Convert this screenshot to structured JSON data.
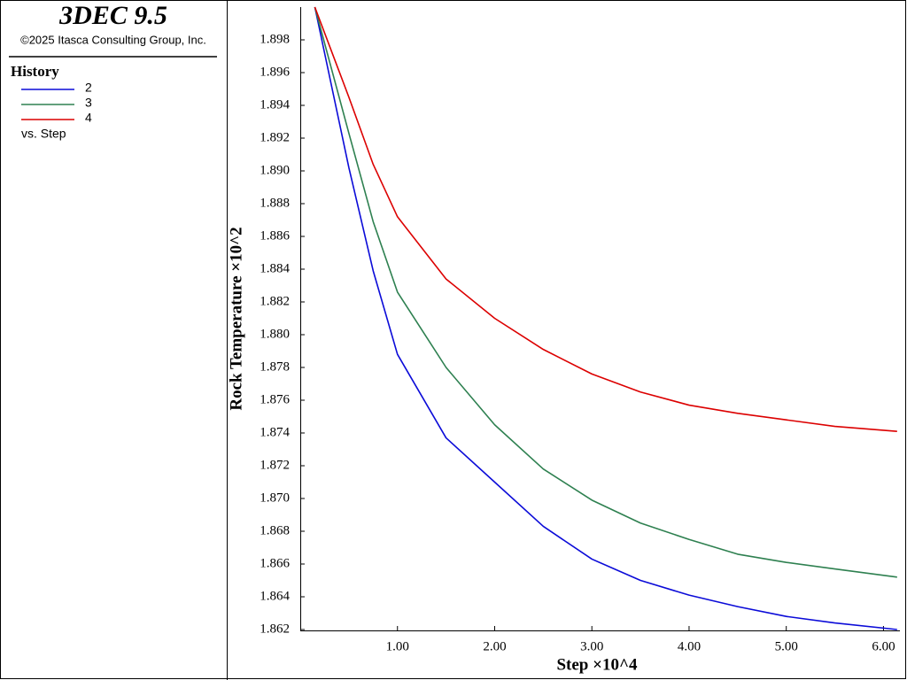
{
  "panel": {
    "title": "3DEC 9.5",
    "copyright": "©2025 Itasca Consulting Group, Inc.",
    "legend_title": "History",
    "legend_note": "vs. Step"
  },
  "chart_data": {
    "type": "line",
    "xlabel": "Step ×10^4",
    "ylabel": "Rock Temperature ×10^2",
    "x": [
      0.15,
      0.5,
      0.75,
      1,
      1.5,
      2,
      2.5,
      3,
      3.5,
      4,
      4.5,
      5,
      5.5,
      6.14
    ],
    "series": [
      {
        "name": "2",
        "color": "#0b0bd8",
        "values": [
          1.9,
          1.8902,
          1.8839,
          1.8788,
          1.8737,
          1.871,
          1.8683,
          1.8663,
          1.865,
          1.8641,
          1.8634,
          1.8628,
          1.8624,
          1.862
        ]
      },
      {
        "name": "3",
        "color": "#2e8050",
        "values": [
          1.9,
          1.8923,
          1.8869,
          1.8826,
          1.878,
          1.8745,
          1.8718,
          1.8699,
          1.8685,
          1.8675,
          1.8666,
          1.8661,
          1.8657,
          1.8652
        ]
      },
      {
        "name": "4",
        "color": "#dc0000",
        "values": [
          1.9,
          1.8945,
          1.8904,
          1.8872,
          1.8834,
          1.881,
          1.8791,
          1.8776,
          1.8765,
          1.8757,
          1.8752,
          1.8748,
          1.8744,
          1.8741
        ]
      }
    ],
    "xlim": [
      0,
      6.16
    ],
    "ylim": [
      1.862,
      1.9
    ],
    "xticks": [
      {
        "value": 1,
        "label": "1.00"
      },
      {
        "value": 2,
        "label": "2.00"
      },
      {
        "value": 3,
        "label": "3.00"
      },
      {
        "value": 4,
        "label": "4.00"
      },
      {
        "value": 5,
        "label": "5.00"
      },
      {
        "value": 6,
        "label": "6.00"
      }
    ],
    "yticks": [
      1.862,
      1.864,
      1.866,
      1.868,
      {
        "value": 1.87,
        "label": "1.870"
      },
      1.872,
      1.874,
      1.876,
      1.878,
      {
        "value": 1.88,
        "label": "1.880"
      },
      1.882,
      1.884,
      1.886,
      1.888,
      {
        "value": 1.89,
        "label": "1.890"
      },
      1.892,
      1.894,
      1.896,
      1.898
    ]
  }
}
